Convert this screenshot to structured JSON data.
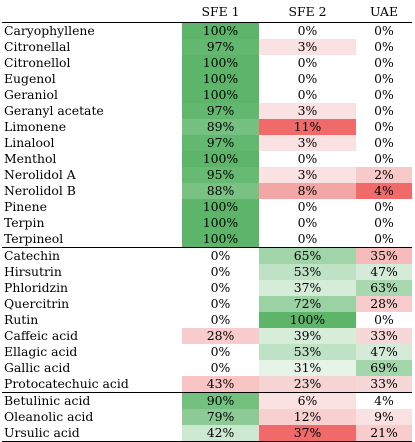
{
  "table": {
    "headers": [
      "",
      "SFE 1",
      "SFE 2",
      "UAE"
    ],
    "rows": [
      {
        "name": "Caryophyllene",
        "values": [
          "100%",
          "0%",
          "0%"
        ],
        "colors": [
          "#5db56a",
          "#ffffff",
          "#ffffff"
        ]
      },
      {
        "name": "Citronellal",
        "values": [
          "97%",
          "3%",
          "0%"
        ],
        "colors": [
          "#62b86e",
          "#fbe2e2",
          "#ffffff"
        ]
      },
      {
        "name": "Citronellol",
        "values": [
          "100%",
          "0%",
          "0%"
        ],
        "colors": [
          "#5db56a",
          "#ffffff",
          "#ffffff"
        ]
      },
      {
        "name": "Eugenol",
        "values": [
          "100%",
          "0%",
          "0%"
        ],
        "colors": [
          "#5db56a",
          "#ffffff",
          "#ffffff"
        ]
      },
      {
        "name": "Geraniol",
        "values": [
          "100%",
          "0%",
          "0%"
        ],
        "colors": [
          "#5db56a",
          "#ffffff",
          "#ffffff"
        ]
      },
      {
        "name": "Geranyl acetate",
        "values": [
          "97%",
          "3%",
          "0%"
        ],
        "colors": [
          "#62b86e",
          "#fbe2e2",
          "#ffffff"
        ]
      },
      {
        "name": "Limonene",
        "values": [
          "89%",
          "11%",
          "0%"
        ],
        "colors": [
          "#76c182",
          "#f06a6a",
          "#ffffff"
        ]
      },
      {
        "name": "Linalool",
        "values": [
          "97%",
          "3%",
          "0%"
        ],
        "colors": [
          "#62b86e",
          "#fbe2e2",
          "#ffffff"
        ]
      },
      {
        "name": "Menthol",
        "values": [
          "100%",
          "0%",
          "0%"
        ],
        "colors": [
          "#5db56a",
          "#ffffff",
          "#ffffff"
        ]
      },
      {
        "name": "Nerolidol A",
        "values": [
          "95%",
          "3%",
          "2%"
        ],
        "colors": [
          "#67ba72",
          "#fbe2e2",
          "#f8c9c9"
        ]
      },
      {
        "name": "Nerolidol B",
        "values": [
          "88%",
          "8%",
          "4%"
        ],
        "colors": [
          "#79c284",
          "#f3a6a6",
          "#f06a6a"
        ]
      },
      {
        "name": "Pinene",
        "values": [
          "100%",
          "0%",
          "0%"
        ],
        "colors": [
          "#5db56a",
          "#ffffff",
          "#ffffff"
        ]
      },
      {
        "name": "Terpin",
        "values": [
          "100%",
          "0%",
          "0%"
        ],
        "colors": [
          "#5db56a",
          "#ffffff",
          "#ffffff"
        ]
      },
      {
        "name": "Terpineol",
        "values": [
          "100%",
          "0%",
          "0%"
        ],
        "colors": [
          "#5db56a",
          "#ffffff",
          "#ffffff"
        ]
      },
      {
        "name": "Catechin",
        "values": [
          "0%",
          "65%",
          "35%"
        ],
        "colors": [
          "#ffffff",
          "#a1d4a9",
          "#f6bcbc"
        ],
        "sep": true
      },
      {
        "name": "Hirsutrin",
        "values": [
          "0%",
          "53%",
          "47%"
        ],
        "colors": [
          "#ffffff",
          "#bfe2c4",
          "#d5ebd8"
        ]
      },
      {
        "name": "Phloridzin",
        "values": [
          "0%",
          "37%",
          "63%"
        ],
        "colors": [
          "#ffffff",
          "#d4ecd8",
          "#a9d8b0"
        ]
      },
      {
        "name": "Quercitrin",
        "values": [
          "0%",
          "72%",
          "28%"
        ],
        "colors": [
          "#ffffff",
          "#9bd2a3",
          "#f8cccc"
        ]
      },
      {
        "name": "Rutin",
        "values": [
          "0%",
          "100%",
          "0%"
        ],
        "colors": [
          "#ffffff",
          "#5db56a",
          "#ffffff"
        ]
      },
      {
        "name": "Caffeic acid",
        "values": [
          "28%",
          "39%",
          "33%"
        ],
        "colors": [
          "#f8cccc",
          "#d7edda",
          "#f6d8d8"
        ]
      },
      {
        "name": "Ellagic acid",
        "values": [
          "0%",
          "53%",
          "47%"
        ],
        "colors": [
          "#ffffff",
          "#bfe2c4",
          "#d5ebd8"
        ]
      },
      {
        "name": "Gallic acid",
        "values": [
          "0%",
          "31%",
          "69%"
        ],
        "colors": [
          "#ffffff",
          "#e6f4e8",
          "#a4d6ab"
        ]
      },
      {
        "name": "Protocatechuic acid",
        "values": [
          "43%",
          "23%",
          "33%"
        ],
        "colors": [
          "#f8c4c4",
          "#f6d4d4",
          "#f6d8d8"
        ]
      },
      {
        "name": "Betulinic acid",
        "values": [
          "90%",
          "6%",
          "4%"
        ],
        "colors": [
          "#74c07f",
          "#fbe2e2",
          "#ffffff"
        ],
        "sep": true
      },
      {
        "name": "Oleanolic acid",
        "values": [
          "79%",
          "12%",
          "9%"
        ],
        "colors": [
          "#8dcb96",
          "#f8d0d0",
          "#fbe2e2"
        ]
      },
      {
        "name": "Ursulic acid",
        "values": [
          "42%",
          "37%",
          "21%"
        ],
        "colors": [
          "#cde8d0",
          "#f06a6a",
          "#f8cccc"
        ]
      }
    ]
  }
}
